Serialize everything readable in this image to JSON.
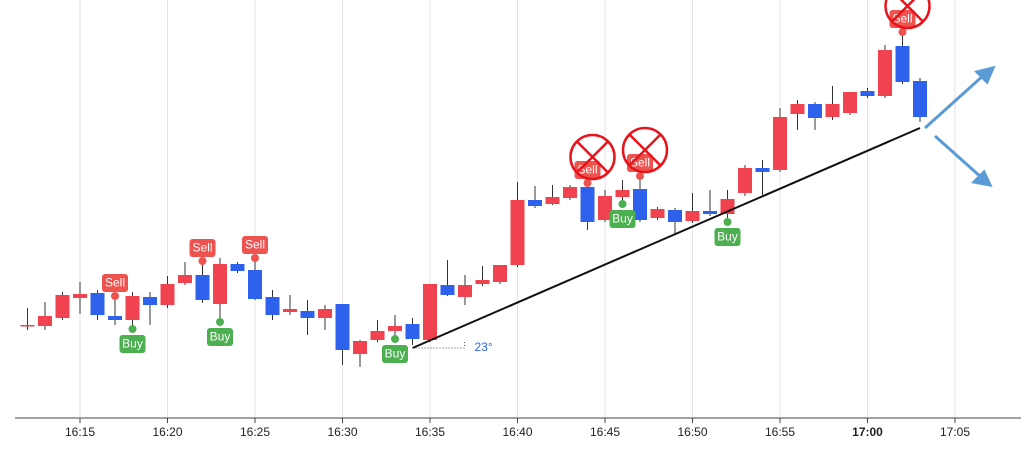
{
  "chart_data": {
    "type": "candlestick",
    "categories": [
      "16:12",
      "16:13",
      "16:14",
      "16:15",
      "16:16",
      "16:17",
      "16:18",
      "16:19",
      "16:20",
      "16:21",
      "16:22",
      "16:23",
      "16:24",
      "16:25",
      "16:26",
      "16:27",
      "16:28",
      "16:29",
      "16:30",
      "16:31",
      "16:32",
      "16:33",
      "16:34",
      "16:35",
      "16:36",
      "16:37",
      "16:38",
      "16:39",
      "16:40",
      "16:41",
      "16:42",
      "16:43",
      "16:44",
      "16:45",
      "16:46",
      "16:47",
      "16:48",
      "16:49",
      "16:50",
      "16:51",
      "16:52",
      "16:53",
      "16:54",
      "16:55",
      "16:56",
      "16:57",
      "16:58",
      "16:59",
      "17:00",
      "17:01",
      "17:02",
      "17:03"
    ],
    "open": [
      127,
      126,
      134,
      154,
      159,
      136,
      132,
      155,
      147,
      169,
      177,
      148,
      188,
      182,
      155,
      140,
      141,
      134,
      148,
      98,
      112,
      121,
      128,
      112,
      167,
      155,
      168,
      170,
      187,
      252,
      248,
      254,
      265,
      232,
      255,
      263,
      234,
      242,
      231,
      241,
      238,
      259,
      284,
      282,
      338,
      348,
      335,
      339,
      361,
      356,
      406,
      371
    ],
    "high": [
      144,
      150,
      160,
      170,
      162,
      152,
      160,
      160,
      176,
      190,
      187,
      194,
      190,
      190,
      162,
      157,
      152,
      147,
      148,
      112,
      132,
      137,
      134,
      168,
      192,
      177,
      186,
      187,
      270,
      266,
      267,
      267,
      265,
      262,
      272,
      272,
      245,
      244,
      259,
      262,
      262,
      287,
      292,
      344,
      352,
      350,
      366,
      360,
      364,
      407,
      416,
      374
    ],
    "low": [
      122,
      122,
      132,
      138,
      132,
      127,
      127,
      127,
      144,
      167,
      149,
      134,
      179,
      152,
      132,
      137,
      117,
      122,
      87,
      85,
      110,
      117,
      107,
      110,
      156,
      147,
      166,
      168,
      185,
      244,
      247,
      252,
      222,
      230,
      252,
      230,
      232,
      217,
      229,
      236,
      234,
      256,
      257,
      280,
      322,
      322,
      332,
      337,
      354,
      354,
      368,
      330
    ],
    "close": [
      127,
      136,
      157,
      158,
      137,
      132,
      156,
      147,
      168,
      177,
      152,
      188,
      181,
      153,
      137,
      143,
      134,
      143,
      102,
      111,
      121,
      126,
      113,
      168,
      157,
      167,
      172,
      187,
      252,
      246,
      255,
      265,
      230,
      256,
      262,
      232,
      243,
      230,
      241,
      238,
      253,
      284,
      280,
      335,
      348,
      334,
      348,
      360,
      356,
      402,
      370,
      335
    ],
    "up_color": "#f0424f",
    "down_color": "#2f62ec",
    "ylim": [
      34,
      452
    ],
    "xticks": [
      "16:15",
      "16:20",
      "16:25",
      "16:30",
      "16:35",
      "16:40",
      "16:45",
      "16:50",
      "16:55",
      "17:00",
      "17:05"
    ],
    "bold_xtick": "17:00",
    "grid": true,
    "signals": [
      {
        "x": "16:17",
        "label": "Sell",
        "crossed": false
      },
      {
        "x": "16:18",
        "label": "Buy",
        "crossed": false
      },
      {
        "x": "16:22",
        "label": "Sell",
        "crossed": false
      },
      {
        "x": "16:23",
        "label": "Buy",
        "crossed": false
      },
      {
        "x": "16:25",
        "label": "Sell",
        "crossed": false
      },
      {
        "x": "16:33",
        "label": "Buy",
        "crossed": false
      },
      {
        "x": "16:44",
        "label": "Sell",
        "crossed": true
      },
      {
        "x": "16:46",
        "label": "Buy",
        "crossed": false
      },
      {
        "x": "16:47",
        "label": "Sell",
        "crossed": true
      },
      {
        "x": "16:52",
        "label": "Buy",
        "crossed": false
      },
      {
        "x": "17:02",
        "label": "Sell",
        "crossed": true
      }
    ],
    "trendline": {
      "x": [
        "16:34",
        "17:03"
      ],
      "values": [
        104,
        324
      ],
      "angle_label": "23°"
    }
  }
}
